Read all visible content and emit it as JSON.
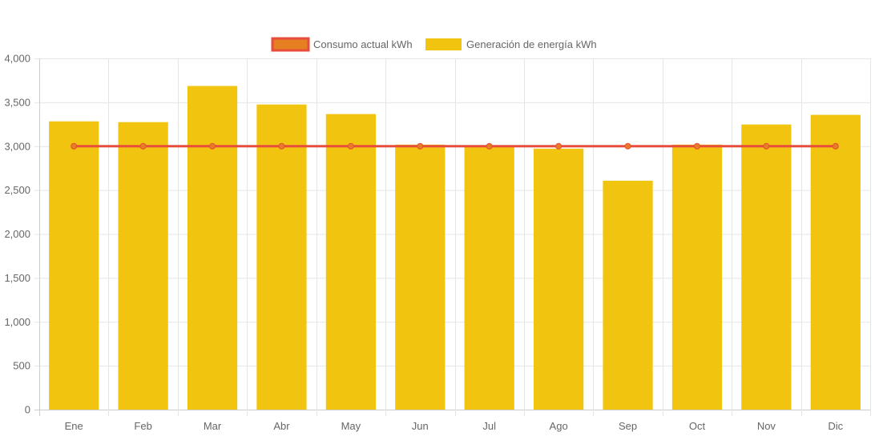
{
  "chart_data": {
    "type": "bar",
    "title": "",
    "xlabel": "",
    "ylabel": "",
    "categories": [
      "Ene",
      "Feb",
      "Mar",
      "Abr",
      "May",
      "Jun",
      "Jul",
      "Ago",
      "Sep",
      "Oct",
      "Nov",
      "Dic"
    ],
    "series": [
      {
        "name": "Consumo actual kWh",
        "type": "line",
        "color": "#e74c3c",
        "point_color": "#e67e22",
        "values": [
          3000,
          3000,
          3000,
          3000,
          3000,
          3000,
          3000,
          3000,
          3000,
          3000,
          3000,
          3000
        ]
      },
      {
        "name": "Generación de energía kWh",
        "type": "bar",
        "color": "#f1c40f",
        "values": [
          3283,
          3274,
          3686,
          3475,
          3366,
          3018,
          3009,
          2972,
          2607,
          3018,
          3247,
          3357
        ]
      }
    ],
    "ylim": [
      0,
      4000
    ],
    "yticks": [
      "0",
      "500",
      "1,000",
      "1,500",
      "2,000",
      "2,500",
      "3,000",
      "3,500",
      "4,000"
    ],
    "grid": true,
    "legend": "top-center"
  }
}
